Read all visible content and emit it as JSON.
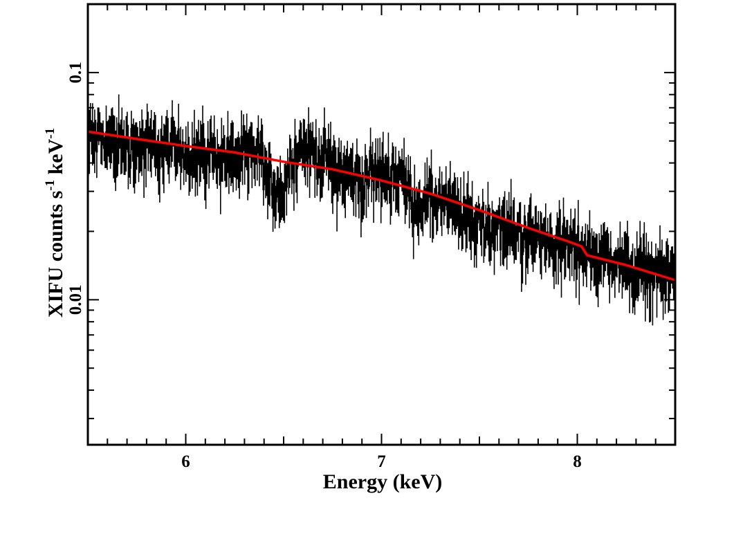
{
  "chart_data": {
    "type": "line",
    "title": "",
    "xlabel": "Energy (keV)",
    "ylabel": {
      "part1": "XIFU counts s",
      "exp1": "-1",
      "part2": " keV",
      "exp2": "-1"
    },
    "xlim": [
      5.5,
      8.5
    ],
    "ylim": [
      0.0023,
      0.2
    ],
    "yscale": "log",
    "x_ticks": [
      {
        "value": 6,
        "label": "6"
      },
      {
        "value": 7,
        "label": "7"
      },
      {
        "value": 8,
        "label": "8"
      }
    ],
    "y_ticks": [
      {
        "value": 0.01,
        "label": "0.01"
      },
      {
        "value": 0.1,
        "label": "0.1"
      }
    ],
    "grid": false,
    "series": [
      {
        "name": "data",
        "color": "#000000",
        "style": "step-with-errorbars",
        "points": [
          {
            "x": 5.5,
            "y": 0.052
          },
          {
            "x": 5.6,
            "y": 0.051
          },
          {
            "x": 5.7,
            "y": 0.049
          },
          {
            "x": 5.8,
            "y": 0.048
          },
          {
            "x": 5.9,
            "y": 0.047
          },
          {
            "x": 6.0,
            "y": 0.046
          },
          {
            "x": 6.1,
            "y": 0.045
          },
          {
            "x": 6.2,
            "y": 0.044
          },
          {
            "x": 6.3,
            "y": 0.043
          },
          {
            "x": 6.38,
            "y": 0.044
          },
          {
            "x": 6.42,
            "y": 0.033
          },
          {
            "x": 6.5,
            "y": 0.031
          },
          {
            "x": 6.56,
            "y": 0.046
          },
          {
            "x": 6.6,
            "y": 0.047
          },
          {
            "x": 6.7,
            "y": 0.043
          },
          {
            "x": 6.8,
            "y": 0.037
          },
          {
            "x": 6.9,
            "y": 0.034
          },
          {
            "x": 7.0,
            "y": 0.037
          },
          {
            "x": 7.1,
            "y": 0.036
          },
          {
            "x": 7.15,
            "y": 0.028
          },
          {
            "x": 7.2,
            "y": 0.027
          },
          {
            "x": 7.3,
            "y": 0.028
          },
          {
            "x": 7.4,
            "y": 0.024
          },
          {
            "x": 7.5,
            "y": 0.022
          },
          {
            "x": 7.6,
            "y": 0.021
          },
          {
            "x": 7.7,
            "y": 0.02
          },
          {
            "x": 7.8,
            "y": 0.019
          },
          {
            "x": 7.9,
            "y": 0.018
          },
          {
            "x": 8.0,
            "y": 0.017
          },
          {
            "x": 8.1,
            "y": 0.016
          },
          {
            "x": 8.2,
            "y": 0.015
          },
          {
            "x": 8.3,
            "y": 0.014
          },
          {
            "x": 8.4,
            "y": 0.0135
          },
          {
            "x": 8.5,
            "y": 0.013
          }
        ]
      },
      {
        "name": "model",
        "color": "#ff0000",
        "style": "line",
        "points": [
          {
            "x": 5.5,
            "y": 0.055
          },
          {
            "x": 5.75,
            "y": 0.051
          },
          {
            "x": 6.0,
            "y": 0.0475
          },
          {
            "x": 6.25,
            "y": 0.0445
          },
          {
            "x": 6.5,
            "y": 0.0405
          },
          {
            "x": 6.75,
            "y": 0.0375
          },
          {
            "x": 7.0,
            "y": 0.0335
          },
          {
            "x": 7.25,
            "y": 0.0293
          },
          {
            "x": 7.5,
            "y": 0.0248
          },
          {
            "x": 7.75,
            "y": 0.0207
          },
          {
            "x": 7.95,
            "y": 0.0181
          },
          {
            "x": 8.02,
            "y": 0.0172
          },
          {
            "x": 8.05,
            "y": 0.0157
          },
          {
            "x": 8.25,
            "y": 0.0142
          },
          {
            "x": 8.5,
            "y": 0.0122
          }
        ]
      }
    ]
  }
}
